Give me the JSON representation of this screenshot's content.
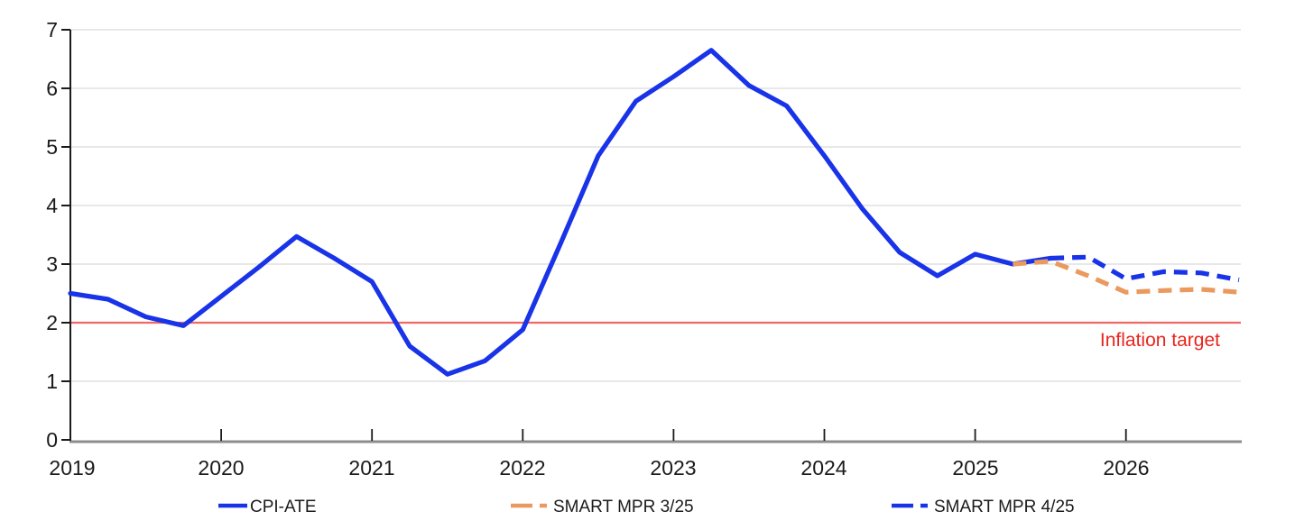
{
  "chart_data": {
    "type": "line",
    "title": "",
    "x_axis": {
      "tick_labels": [
        "2019",
        "2020",
        "2021",
        "2022",
        "2023",
        "2024",
        "2025",
        "2026"
      ],
      "unit": "year",
      "points_per_year": 4,
      "range_note": "quarterly data from 2019Q1 to 2026Q4"
    },
    "y_axis": {
      "tick_labels": [
        "0",
        "1",
        "2",
        "3",
        "4",
        "5",
        "6",
        "7"
      ],
      "min": 0,
      "max": 7,
      "grid": "horizontal"
    },
    "series": [
      {
        "name": "CPI-ATE",
        "style": "solid",
        "color": "#1833e8",
        "start_quarter": 0,
        "start_label": "2019Q1",
        "values": [
          2.5,
          2.4,
          2.1,
          1.95,
          2.45,
          2.95,
          3.47,
          3.1,
          2.7,
          1.6,
          1.12,
          1.35,
          1.88,
          3.35,
          4.85,
          5.78,
          6.2,
          6.65,
          6.05,
          5.7,
          4.85,
          3.95,
          3.2,
          2.8,
          3.17,
          3.0,
          3.1
        ]
      },
      {
        "name": "SMART MPR 3/25",
        "style": "dashed",
        "color": "#ea9a5e",
        "start_quarter": 25,
        "start_label": "2025Q2",
        "values": [
          3.0,
          3.05,
          2.8,
          2.52,
          2.55,
          2.57,
          2.52
        ]
      },
      {
        "name": "SMART MPR 4/25",
        "style": "dashed",
        "color": "#1833e8",
        "start_quarter": 26,
        "start_label": "2025Q3",
        "values": [
          3.1,
          3.12,
          2.75,
          2.87,
          2.85,
          2.73
        ]
      }
    ],
    "reference_line": {
      "label": "Inflation target",
      "value": 2,
      "line_color": "#ef6a64",
      "label_color": "#e8251d"
    },
    "legend_position": "bottom",
    "colors": {
      "grid": "#d9d9d9",
      "y_axis": "#1a1a1a",
      "x_axis": "#8c8c8c",
      "tick": "#1a1a1a"
    }
  }
}
